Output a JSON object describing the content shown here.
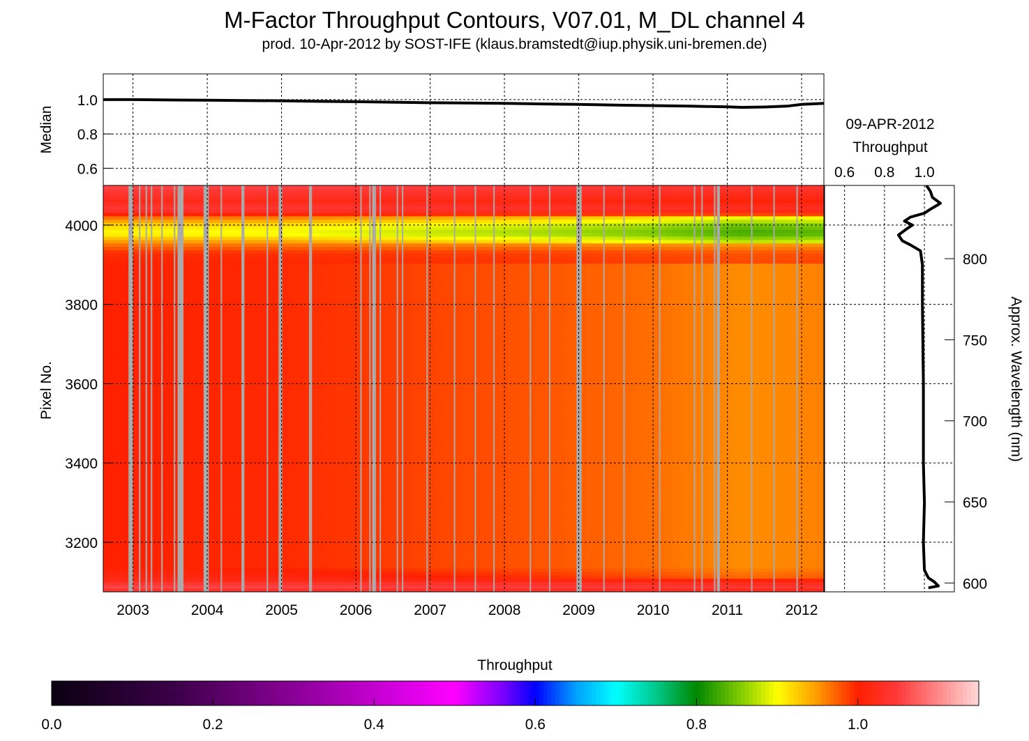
{
  "title": "M-Factor Throughput Contours, V07.01, M_DL channel 4",
  "subtitle": "prod. 10-Apr-2012 by SOST-IFE (klaus.bramstedt@iup.physik.uni-bremen.de)",
  "chart_data": [
    {
      "id": "median",
      "type": "line",
      "ylabel": "Median",
      "xlim": [
        2002.6,
        2012.3
      ],
      "ylim": [
        0.5,
        1.15
      ],
      "yticks": [
        0.6,
        0.8,
        1.0
      ],
      "ytick_labels": [
        "0.6",
        "0.8",
        "1.0"
      ],
      "grid": true,
      "series": [
        {
          "x": [
            2002.6,
            2003.0,
            2003.5,
            2004.0,
            2004.5,
            2005.0,
            2005.5,
            2006.0,
            2006.5,
            2007.0,
            2007.5,
            2008.0,
            2008.5,
            2009.0,
            2009.5,
            2010.0,
            2010.5,
            2011.0,
            2011.2,
            2011.5,
            2011.8,
            2012.0,
            2012.3
          ],
          "y": [
            1.0,
            1.0,
            0.998,
            0.997,
            0.995,
            0.993,
            0.99,
            0.988,
            0.985,
            0.982,
            0.98,
            0.978,
            0.975,
            0.972,
            0.968,
            0.965,
            0.962,
            0.958,
            0.955,
            0.957,
            0.962,
            0.972,
            0.978
          ]
        }
      ]
    },
    {
      "id": "contour",
      "type": "heatmap",
      "ylabel": "Pixel No.",
      "xlim": [
        2002.6,
        2012.3
      ],
      "ylim": [
        3075,
        4100
      ],
      "xticks": [
        2003,
        2004,
        2005,
        2006,
        2007,
        2008,
        2009,
        2010,
        2011,
        2012
      ],
      "xtick_labels": [
        "2003",
        "2004",
        "2005",
        "2006",
        "2007",
        "2008",
        "2009",
        "2010",
        "2011",
        "2012"
      ],
      "yticks": [
        3200,
        3400,
        3600,
        3800,
        4000
      ],
      "ytick_labels": [
        "3200",
        "3400",
        "3600",
        "3800",
        "4000"
      ],
      "grid": true,
      "bands": [
        {
          "pixel": 3075,
          "value": 1.03
        },
        {
          "pixel": 3090,
          "value": 1.06
        },
        {
          "pixel": 3105,
          "value": 1.02
        },
        {
          "pixel": 3140,
          "value": 1.0
        },
        {
          "pixel": 3200,
          "value": 1.0
        },
        {
          "pixel": 3900,
          "value": 1.0
        },
        {
          "pixel": 3930,
          "value": 0.995
        },
        {
          "pixel": 3955,
          "value": 0.96
        },
        {
          "pixel": 3980,
          "value": 0.9
        },
        {
          "pixel": 4000,
          "value": 0.92
        },
        {
          "pixel": 4020,
          "value": 0.97
        },
        {
          "pixel": 4040,
          "value": 1.05
        },
        {
          "pixel": 4060,
          "value": 1.02
        },
        {
          "pixel": 4080,
          "value": 1.04
        },
        {
          "pixel": 4100,
          "value": 1.06
        }
      ],
      "trend": [
        {
          "year": 2002.6,
          "delta": 0.0
        },
        {
          "year": 2005.0,
          "delta": -0.004
        },
        {
          "year": 2007.0,
          "delta": -0.015
        },
        {
          "year": 2008.5,
          "delta": -0.022
        },
        {
          "year": 2010.0,
          "delta": -0.032
        },
        {
          "year": 2011.2,
          "delta": -0.045
        },
        {
          "year": 2012.3,
          "delta": -0.04
        }
      ],
      "data_gaps": [
        {
          "start": 2002.94,
          "end": 2003.0
        },
        {
          "start": 2003.08,
          "end": 2003.1
        },
        {
          "start": 2003.17,
          "end": 2003.19
        },
        {
          "start": 2003.24,
          "end": 2003.26
        },
        {
          "start": 2003.38,
          "end": 2003.4
        },
        {
          "start": 2003.55,
          "end": 2003.57
        },
        {
          "start": 2003.6,
          "end": 2003.68
        },
        {
          "start": 2003.95,
          "end": 2004.02
        },
        {
          "start": 2004.18,
          "end": 2004.19
        },
        {
          "start": 2004.46,
          "end": 2004.5
        },
        {
          "start": 2004.8,
          "end": 2004.81
        },
        {
          "start": 2004.96,
          "end": 2005.01
        },
        {
          "start": 2005.37,
          "end": 2005.41
        },
        {
          "start": 2006.06,
          "end": 2006.07
        },
        {
          "start": 2006.18,
          "end": 2006.19
        },
        {
          "start": 2006.22,
          "end": 2006.27
        },
        {
          "start": 2006.32,
          "end": 2006.33
        },
        {
          "start": 2006.55,
          "end": 2006.56
        },
        {
          "start": 2006.62,
          "end": 2006.63
        },
        {
          "start": 2006.95,
          "end": 2006.96
        },
        {
          "start": 2007.32,
          "end": 2007.33
        },
        {
          "start": 2007.6,
          "end": 2007.61
        },
        {
          "start": 2007.85,
          "end": 2007.86
        },
        {
          "start": 2008.34,
          "end": 2008.35
        },
        {
          "start": 2008.6,
          "end": 2008.61
        },
        {
          "start": 2008.97,
          "end": 2009.04
        },
        {
          "start": 2009.33,
          "end": 2009.34
        },
        {
          "start": 2009.6,
          "end": 2009.61
        },
        {
          "start": 2010.08,
          "end": 2010.09
        },
        {
          "start": 2010.55,
          "end": 2010.56
        },
        {
          "start": 2010.65,
          "end": 2010.66
        },
        {
          "start": 2010.82,
          "end": 2010.84
        },
        {
          "start": 2010.86,
          "end": 2010.9
        },
        {
          "start": 2011.32,
          "end": 2011.33
        },
        {
          "start": 2011.62,
          "end": 2011.63
        },
        {
          "start": 2011.93,
          "end": 2011.94
        }
      ]
    },
    {
      "id": "current-spectrum",
      "type": "line",
      "date": "09-APR-2012",
      "xlabel": "Throughput",
      "xlim": [
        0.5,
        1.15
      ],
      "xticks": [
        0.6,
        0.8,
        1.0
      ],
      "xtick_labels": [
        "0.6",
        "0.8",
        "1.0"
      ],
      "y2label": "Approx. Wavelength (nm)",
      "y2ticks": [
        600,
        650,
        700,
        750,
        800
      ],
      "y2tick_labels": [
        "600",
        "650",
        "700",
        "750",
        "800"
      ],
      "series": [
        {
          "pixel": [
            3085,
            3090,
            3100,
            3110,
            3130,
            3200,
            3300,
            3400,
            3600,
            3800,
            3900,
            3935,
            3950,
            3960,
            3975,
            3990,
            4000,
            4010,
            4020,
            4030,
            4040,
            4055,
            4070,
            4085,
            4100
          ],
          "throughput": [
            1.02,
            1.07,
            1.05,
            1.02,
            1.0,
            0.995,
            1.0,
            0.995,
            0.995,
            0.99,
            0.99,
            0.98,
            0.93,
            0.89,
            0.87,
            0.91,
            0.94,
            0.9,
            0.93,
            1.0,
            1.03,
            1.08,
            1.04,
            1.03,
            1.01
          ]
        }
      ]
    },
    {
      "id": "colorbar",
      "type": "heatmap",
      "xlabel": "Throughput",
      "xlim": [
        0.0,
        1.15
      ],
      "xticks": [
        0.0,
        0.2,
        0.4,
        0.6,
        0.8,
        1.0
      ],
      "xtick_labels": [
        "0.0",
        "0.2",
        "0.4",
        "0.6",
        "0.8",
        "1.0"
      ],
      "color_stops": [
        {
          "value": 0.0,
          "color": "#0a0010"
        },
        {
          "value": 0.15,
          "color": "#3a0048"
        },
        {
          "value": 0.3,
          "color": "#8a0096"
        },
        {
          "value": 0.43,
          "color": "#d400e0"
        },
        {
          "value": 0.5,
          "color": "#ff00ff"
        },
        {
          "value": 0.56,
          "color": "#7a00ff"
        },
        {
          "value": 0.6,
          "color": "#0000ff"
        },
        {
          "value": 0.65,
          "color": "#00a0ff"
        },
        {
          "value": 0.7,
          "color": "#00ffff"
        },
        {
          "value": 0.75,
          "color": "#00c88a"
        },
        {
          "value": 0.8,
          "color": "#008800"
        },
        {
          "value": 0.86,
          "color": "#8fd200"
        },
        {
          "value": 0.9,
          "color": "#ffff00"
        },
        {
          "value": 0.95,
          "color": "#ff9900"
        },
        {
          "value": 1.0,
          "color": "#ff2000"
        },
        {
          "value": 1.05,
          "color": "#ff3a3a"
        },
        {
          "value": 1.15,
          "color": "#ffd8d8"
        }
      ]
    }
  ],
  "colors": {
    "data_gap": "#aaaaaa",
    "line": "#000000",
    "grid": "#000000"
  }
}
